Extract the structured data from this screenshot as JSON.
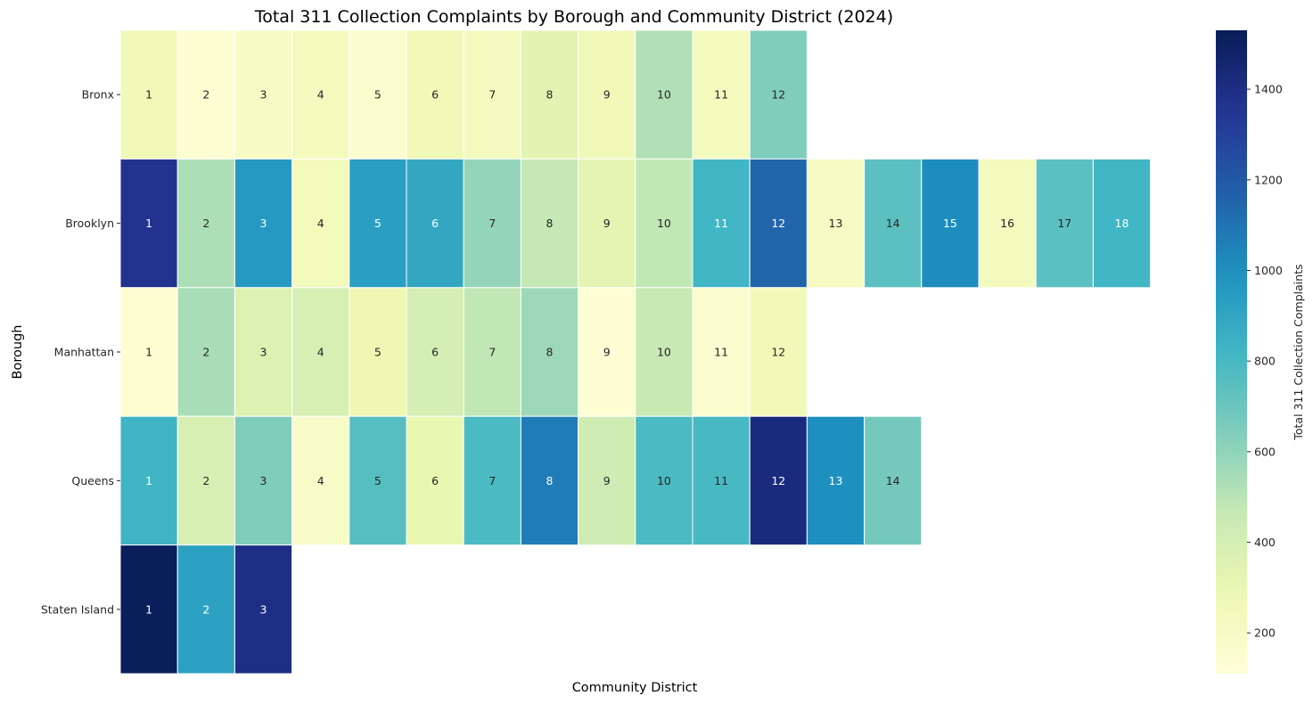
{
  "chart_data": {
    "type": "heatmap",
    "title": "Total 311 Collection Complaints by Borough and Community District (2024)",
    "xlabel": "Community District",
    "ylabel": "Borough",
    "colorbar_label": "Total 311 Collection Complaints",
    "colormap": "YlGnBu",
    "value_range": [
      110,
      1530
    ],
    "colorbar_ticks": [
      200,
      400,
      600,
      800,
      1000,
      1200,
      1400
    ],
    "rows": [
      "Bronx",
      "Brooklyn",
      "Manhattan",
      "Queens",
      "Staten Island"
    ],
    "columns": 18,
    "annotation": "district number",
    "values": [
      [
        260,
        140,
        200,
        230,
        160,
        260,
        220,
        340,
        250,
        520,
        230,
        640,
        null,
        null,
        null,
        null,
        null,
        null
      ],
      [
        1370,
        530,
        960,
        240,
        930,
        890,
        590,
        470,
        330,
        480,
        820,
        1150,
        210,
        740,
        1010,
        230,
        740,
        820
      ],
      [
        140,
        540,
        360,
        390,
        280,
        400,
        480,
        570,
        130,
        460,
        160,
        250,
        null,
        null,
        null,
        null,
        null,
        null
      ],
      [
        830,
        390,
        640,
        180,
        760,
        300,
        790,
        1070,
        430,
        790,
        800,
        1420,
        1000,
        670,
        null,
        null,
        null,
        null
      ],
      [
        1520,
        920,
        1400,
        null,
        null,
        null,
        null,
        null,
        null,
        null,
        null,
        null,
        null,
        null,
        null,
        null,
        null,
        null
      ]
    ]
  }
}
